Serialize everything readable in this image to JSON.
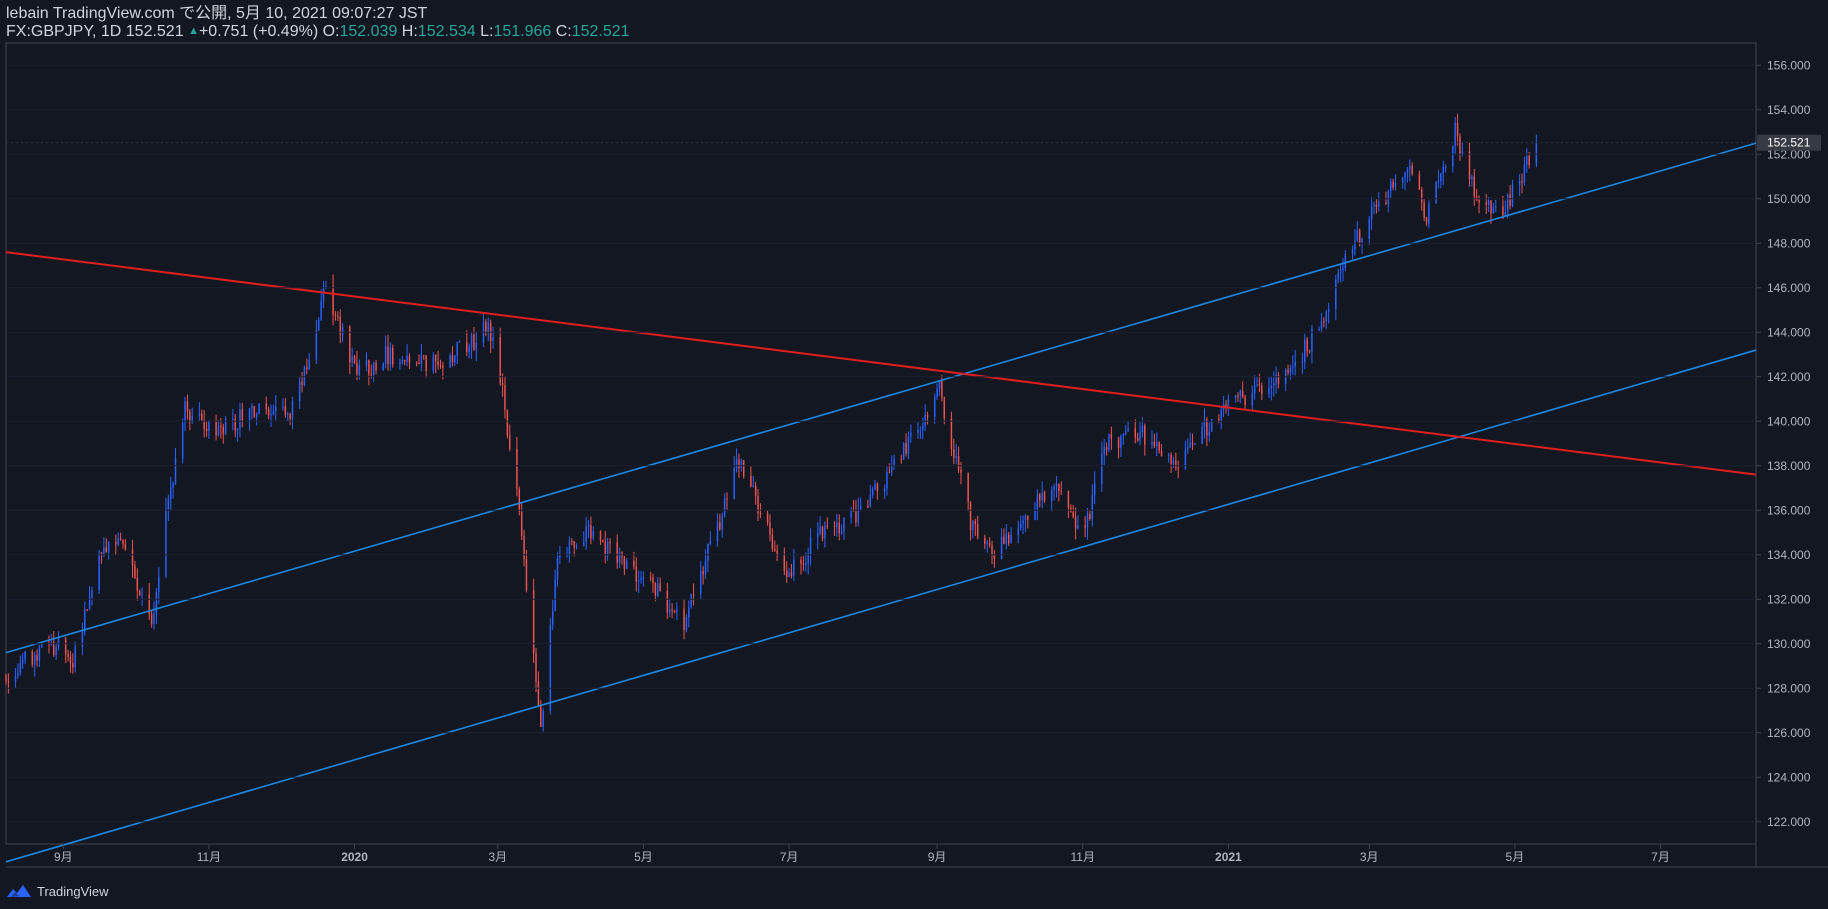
{
  "header": {
    "publish_line": "lebain TradingView.com で公開, 5月 10, 2021 09:07:27 JST",
    "symbol": "FX:GBPJPY, 1D",
    "last": "152.521",
    "change": "+0.751 (+0.49%)",
    "o_label": "O:",
    "o_value": "152.039",
    "h_label": "H:",
    "h_value": "152.534",
    "l_label": "L:",
    "l_value": "151.966",
    "c_label": "C:",
    "c_value": "152.521"
  },
  "footer": {
    "brand": "TradingView",
    "logo_icon": "tradingview-logo-icon"
  },
  "colors": {
    "background": "#131722",
    "up_candle": "#2962ff",
    "down_candle": "#ef5350",
    "channel_line": "#1e88e5",
    "resistance_line": "#e01e1e",
    "axis_text": "#b2b5be",
    "price_label_bg": "#363a45"
  },
  "chart_data": {
    "type": "candlestick",
    "symbol": "FX:GBPJPY",
    "timeframe": "1D",
    "ylim": [
      121.0,
      157.0
    ],
    "y_ticks": [
      "122.000",
      "124.000",
      "126.000",
      "128.000",
      "130.000",
      "132.000",
      "134.000",
      "136.000",
      "138.000",
      "140.000",
      "142.000",
      "144.000",
      "146.000",
      "148.000",
      "150.000",
      "152.000",
      "154.000",
      "156.000"
    ],
    "x_ticks": [
      {
        "date": "2019-09-01",
        "label": "9月"
      },
      {
        "date": "2019-11-01",
        "label": "11月"
      },
      {
        "date": "2020-01-01",
        "label": "2020"
      },
      {
        "date": "2020-03-01",
        "label": "3月"
      },
      {
        "date": "2020-05-01",
        "label": "5月"
      },
      {
        "date": "2020-07-01",
        "label": "7月"
      },
      {
        "date": "2020-09-01",
        "label": "9月"
      },
      {
        "date": "2020-11-01",
        "label": "11月"
      },
      {
        "date": "2021-01-01",
        "label": "2021"
      },
      {
        "date": "2021-03-01",
        "label": "3月"
      },
      {
        "date": "2021-05-01",
        "label": "5月"
      },
      {
        "date": "2021-07-01",
        "label": "7月"
      }
    ],
    "x_range": [
      "2019-08-08",
      "2021-08-10"
    ],
    "last_price": "152.521",
    "close_path": [
      [
        "2019-08-08",
        128.6
      ],
      [
        "2019-08-20",
        129.5
      ],
      [
        "2019-08-30",
        130.0
      ],
      [
        "2019-09-05",
        129.0
      ],
      [
        "2019-09-15",
        133.5
      ],
      [
        "2019-09-25",
        135.0
      ],
      [
        "2019-10-08",
        130.8
      ],
      [
        "2019-10-15",
        136.5
      ],
      [
        "2019-10-22",
        140.5
      ],
      [
        "2019-11-05",
        139.5
      ],
      [
        "2019-11-20",
        140.5
      ],
      [
        "2019-12-05",
        140.5
      ],
      [
        "2019-12-13",
        143.0
      ],
      [
        "2019-12-20",
        146.0
      ],
      [
        "2020-01-02",
        142.0
      ],
      [
        "2020-01-15",
        143.0
      ],
      [
        "2020-02-01",
        142.5
      ],
      [
        "2020-02-20",
        143.5
      ],
      [
        "2020-02-26",
        144.5
      ],
      [
        "2020-03-02",
        142.0
      ],
      [
        "2020-03-10",
        136.0
      ],
      [
        "2020-03-19",
        126.0
      ],
      [
        "2020-03-26",
        134.0
      ],
      [
        "2020-04-08",
        135.0
      ],
      [
        "2020-04-20",
        134.0
      ],
      [
        "2020-05-05",
        132.5
      ],
      [
        "2020-05-18",
        131.0
      ],
      [
        "2020-06-05",
        136.5
      ],
      [
        "2020-06-10",
        138.3
      ],
      [
        "2020-06-30",
        133.0
      ],
      [
        "2020-07-15",
        135.0
      ],
      [
        "2020-08-01",
        136.0
      ],
      [
        "2020-08-20",
        139.0
      ],
      [
        "2020-09-02",
        141.5
      ],
      [
        "2020-09-15",
        135.5
      ],
      [
        "2020-09-25",
        134.0
      ],
      [
        "2020-10-05",
        135.5
      ],
      [
        "2020-10-20",
        137.0
      ],
      [
        "2020-11-02",
        135.0
      ],
      [
        "2020-11-10",
        139.0
      ],
      [
        "2020-11-25",
        139.5
      ],
      [
        "2020-12-10",
        138.0
      ],
      [
        "2020-12-20",
        139.5
      ],
      [
        "2021-01-05",
        141.0
      ],
      [
        "2021-01-25",
        142.0
      ],
      [
        "2021-02-10",
        144.5
      ],
      [
        "2021-02-20",
        147.5
      ],
      [
        "2021-03-03",
        149.5
      ],
      [
        "2021-03-18",
        151.5
      ],
      [
        "2021-03-25",
        149.0
      ],
      [
        "2021-04-06",
        153.0
      ],
      [
        "2021-04-15",
        150.0
      ],
      [
        "2021-04-27",
        149.5
      ],
      [
        "2021-05-10",
        152.5
      ]
    ],
    "trend_lines": [
      {
        "name": "channel-upper",
        "color": "#1e88e5",
        "p1": [
          "2019-08-08",
          129.6
        ],
        "p2": [
          "2021-08-10",
          152.5
        ]
      },
      {
        "name": "channel-lower",
        "color": "#1e88e5",
        "p1": [
          "2019-08-08",
          120.2
        ],
        "p2": [
          "2021-08-10",
          143.2
        ]
      },
      {
        "name": "resistance",
        "color": "#e01e1e",
        "p1": [
          "2019-08-08",
          147.6
        ],
        "p2": [
          "2021-08-10",
          137.6
        ]
      }
    ]
  }
}
